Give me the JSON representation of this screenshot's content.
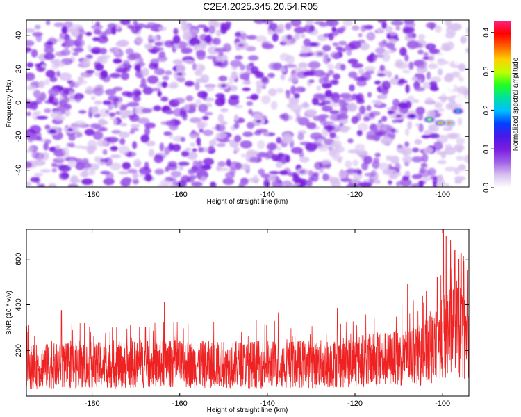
{
  "title": "C2E4.2025.345.20.54.R05",
  "chart_data": [
    {
      "type": "heatmap",
      "xlabel": "Height of straight line (km)",
      "ylabel": "Frequency (Hz)",
      "xlim": [
        -195,
        -94
      ],
      "ylim": [
        -50,
        49
      ],
      "x_ticks": [
        -180,
        -160,
        -140,
        -120,
        -100
      ],
      "y_ticks": [
        -40,
        -20,
        0,
        20,
        40
      ],
      "colorbar": {
        "label": "Normalized spectral amplitude",
        "ticks": [
          0.0,
          0.1,
          0.2,
          0.3,
          0.4
        ],
        "range": [
          0,
          0.43
        ],
        "colors": [
          "#ffffff",
          "#d8c0f0",
          "#a060e8",
          "#7a1ee0",
          "#4a18e8",
          "#0040ff",
          "#00c0ff",
          "#00e0a0",
          "#20ff20",
          "#c0ff00",
          "#ffd000",
          "#ff6000",
          "#ff0000",
          "#ff2080"
        ]
      },
      "hotspots": [
        {
          "x": -103,
          "y": -10,
          "z": 0.3
        },
        {
          "x": -98.5,
          "y": -12,
          "z": 0.42
        },
        {
          "x": -100.5,
          "y": -12,
          "z": 0.38
        },
        {
          "x": -96.5,
          "y": -5,
          "z": 0.22
        },
        {
          "x": -107,
          "y": -8,
          "z": 0.14
        },
        {
          "x": -110,
          "y": -8,
          "z": 0.1
        },
        {
          "x": -189,
          "y": -17,
          "z": 0.12
        },
        {
          "x": -185,
          "y": -16,
          "z": 0.1
        },
        {
          "x": -160,
          "y": 17,
          "z": 0.1
        },
        {
          "x": -150,
          "y": 10,
          "z": 0.09
        },
        {
          "x": -142,
          "y": -11,
          "z": 0.09
        },
        {
          "x": -128,
          "y": 29,
          "z": 0.08
        },
        {
          "x": -132,
          "y": -41,
          "z": 0.08
        },
        {
          "x": -146,
          "y": 34,
          "z": 0.08
        }
      ]
    },
    {
      "type": "line",
      "xlabel": "Height of straight line (km)",
      "ylabel": "SNR (10 * v/v)",
      "xlim": [
        -195,
        -94
      ],
      "ylim": [
        0,
        730
      ],
      "x_ticks": [
        -180,
        -160,
        -140,
        -120,
        -100
      ],
      "y_ticks": [
        200,
        400,
        600
      ],
      "series": [
        {
          "color": "#ee2222",
          "baseline": [
            [
              -195,
              130
            ],
            [
              -180,
              135
            ],
            [
              -165,
              140
            ],
            [
              -150,
              138
            ],
            [
              -140,
              140
            ],
            [
              -125,
              142
            ],
            [
              -118,
              155
            ],
            [
              -110,
              165
            ],
            [
              -105,
              180
            ],
            [
              -101,
              220
            ],
            [
              -99,
              280
            ],
            [
              -97,
              300
            ],
            [
              -95,
              260
            ],
            [
              -94,
              220
            ]
          ],
          "peaks": [
            [
              -187,
              375
            ],
            [
              -163.5,
              410
            ],
            [
              -137.5,
              365
            ],
            [
              -124,
              385
            ],
            [
              -108,
              490
            ],
            [
              -101.2,
              520
            ],
            [
              -99.8,
              730
            ],
            [
              -99.2,
              700
            ],
            [
              -98.2,
              680
            ],
            [
              -97.2,
              640
            ],
            [
              -96.3,
              600
            ],
            [
              -95.3,
              560
            ]
          ]
        }
      ]
    }
  ]
}
